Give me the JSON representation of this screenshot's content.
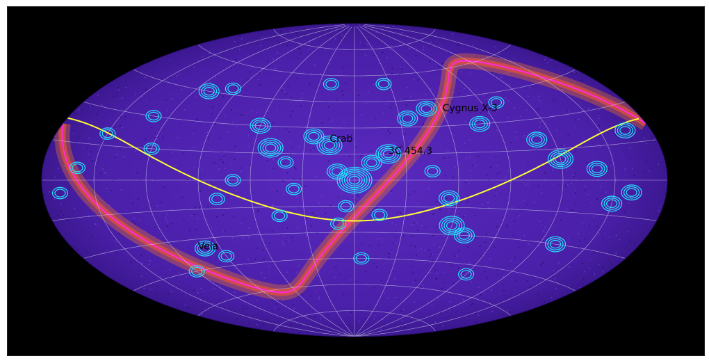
{
  "chart_data": {
    "type": "scatter",
    "projection": "aitoff",
    "grid": true,
    "annotations": [
      {
        "text": "Crab",
        "lon": -15,
        "lat": 22
      },
      {
        "text": "Cygnus X-3",
        "lon": 60,
        "lat": 38
      },
      {
        "text": "3C 454.3",
        "lon": 20,
        "lat": 15
      },
      {
        "text": "Vela",
        "lon": -105,
        "lat": -35
      }
    ],
    "curves": [
      {
        "color": "#ffff33"
      },
      {
        "color": "#ff2bd6"
      }
    ],
    "colors": {
      "background": "#000000",
      "ellipse_fill": "#4a1fa8",
      "contour": "#22e6ff",
      "grid": "#c8c8e6"
    }
  }
}
